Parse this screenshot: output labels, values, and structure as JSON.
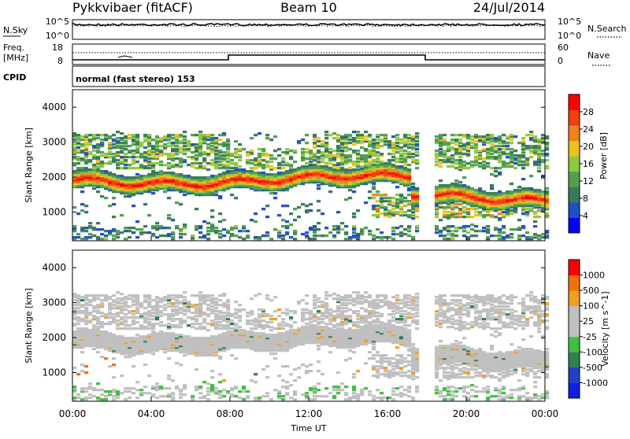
{
  "header": {
    "station": "Pykkvibaer (fitACF)",
    "beam": "Beam 10",
    "date": "24/Jul/2014"
  },
  "top_panel": {
    "left_label": "N.Sky",
    "right_label": "N.Search",
    "left_ticks": [
      "10^5",
      "10^0"
    ],
    "right_ticks": [
      "10^5",
      "10^0"
    ]
  },
  "freq_panel": {
    "left_label_1": "Freq.",
    "left_label_2": "[MHz]",
    "left_ticks": [
      "18",
      "8"
    ],
    "right_label": "Nave",
    "right_ticks": [
      "60",
      "0"
    ]
  },
  "cpid_panel": {
    "label": "CPID",
    "value": "normal (fast stereo) 153"
  },
  "colors": {
    "power": [
      "#0000ff",
      "#2050c0",
      "#3a7a5a",
      "#50a050",
      "#90c840",
      "#f0c020",
      "#f08020",
      "#f04010",
      "#ff0000"
    ],
    "velocity": [
      "#1020e0",
      "#2040c0",
      "#308050",
      "#40c040",
      "#c0c0c0",
      "#c0c0c0",
      "#f0a020",
      "#f07010",
      "#ff0000"
    ]
  },
  "chart_data": [
    {
      "type": "heatmap",
      "ylabel": "Slant Range [km]",
      "xlabel": "",
      "y_ticks": [
        "4000",
        "3000",
        "2000",
        "1000"
      ],
      "ylim": [
        180,
        4500
      ],
      "colorbar_label": "Power [dB]",
      "colorbar_ticks": [
        "28",
        "24",
        "20",
        "16",
        "12",
        "8",
        "4"
      ],
      "colorbar_range": [
        0,
        30
      ]
    },
    {
      "type": "heatmap",
      "ylabel": "Slant Range [km]",
      "xlabel": "Time UT",
      "x_ticks": [
        "00:00",
        "04:00",
        "08:00",
        "12:00",
        "16:00",
        "20:00",
        "00:00"
      ],
      "y_ticks": [
        "4000",
        "3000",
        "2000",
        "1000"
      ],
      "ylim": [
        180,
        4500
      ],
      "colorbar_label": "Velocity [m s^-1]",
      "colorbar_ticks": [
        "1000",
        "500",
        "100",
        "25",
        "-25",
        "-100",
        "-500",
        "-1000"
      ]
    }
  ]
}
